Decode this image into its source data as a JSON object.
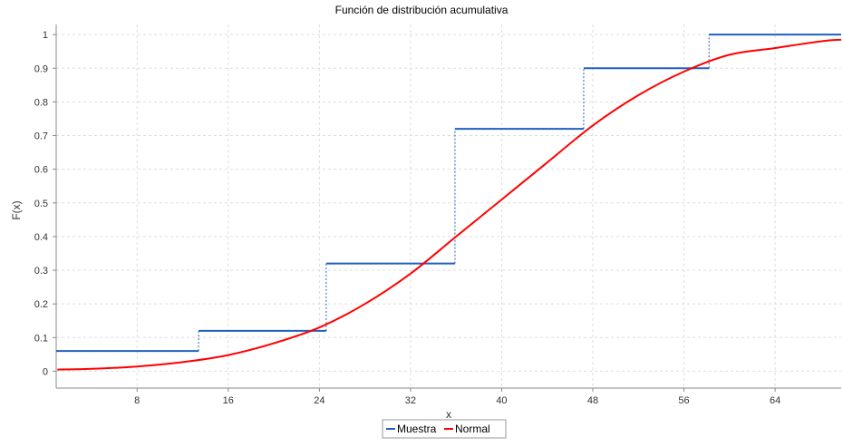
{
  "colors": {
    "muestra": "#1f5fbf",
    "normal": "#ff0000",
    "grid": "#dddddd",
    "axis": "#888888"
  },
  "chart_data": {
    "type": "line",
    "title": "Función de distribución acumulativa",
    "xlabel": "x",
    "ylabel": "F(x)",
    "xlim": [
      0.9,
      69.8
    ],
    "ylim": [
      -0.05,
      1.03
    ],
    "xticks": [
      8,
      16,
      24,
      32,
      40,
      48,
      56,
      64
    ],
    "yticks": [
      0,
      0.1,
      0.2,
      0.3,
      0.4,
      0.5,
      0.6,
      0.7,
      0.8,
      0.9,
      1
    ],
    "grid": true,
    "legend_position": "bottom-center",
    "series": [
      {
        "name": "Muestra",
        "style": "step",
        "x": [
          0.9,
          13.4,
          24.6,
          35.9,
          47.2,
          58.2,
          69.8
        ],
        "values": [
          0.06,
          0.12,
          0.32,
          0.72,
          0.9,
          1.0,
          1.0
        ]
      },
      {
        "name": "Normal",
        "style": "smooth",
        "x": [
          1,
          4,
          8,
          12,
          16,
          20,
          24,
          28,
          32,
          36,
          40,
          44,
          48,
          52,
          56,
          60,
          64,
          68,
          69.8
        ],
        "values": [
          0.005,
          0.007,
          0.014,
          0.027,
          0.048,
          0.083,
          0.13,
          0.2,
          0.29,
          0.4,
          0.51,
          0.62,
          0.73,
          0.82,
          0.89,
          0.94,
          0.96,
          0.98,
          0.985
        ]
      }
    ]
  }
}
